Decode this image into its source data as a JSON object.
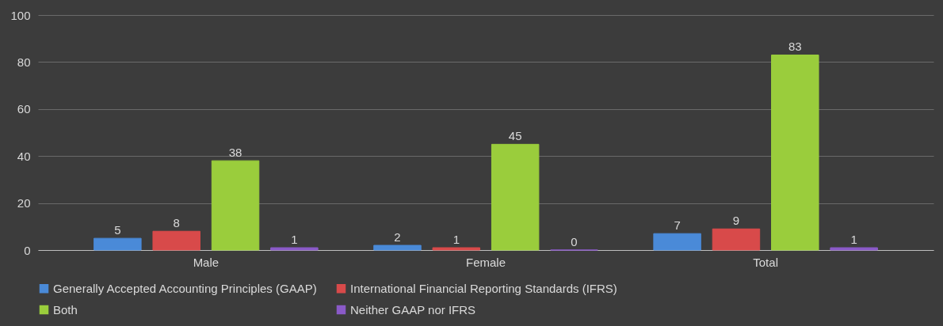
{
  "chart_data": {
    "type": "bar",
    "categories": [
      "Male",
      "Female",
      "Total"
    ],
    "series": [
      {
        "name": "Generally Accepted Accounting Principles (GAAP)",
        "color": "#4a8ad8",
        "values": [
          5,
          2,
          7
        ]
      },
      {
        "name": "International Financial Reporting Standards (IFRS)",
        "color": "#d84a4a",
        "values": [
          8,
          1,
          9
        ]
      },
      {
        "name": "Both",
        "color": "#9acd3c",
        "values": [
          38,
          45,
          83
        ]
      },
      {
        "name": "Neither GAAP nor IFRS",
        "color": "#8a5ac8",
        "values": [
          1,
          0,
          1
        ]
      }
    ],
    "ylim": [
      0,
      100
    ],
    "yticks": [
      0,
      20,
      40,
      60,
      80,
      100
    ],
    "grid": "y",
    "legend": "bottom",
    "data_labels": true
  }
}
